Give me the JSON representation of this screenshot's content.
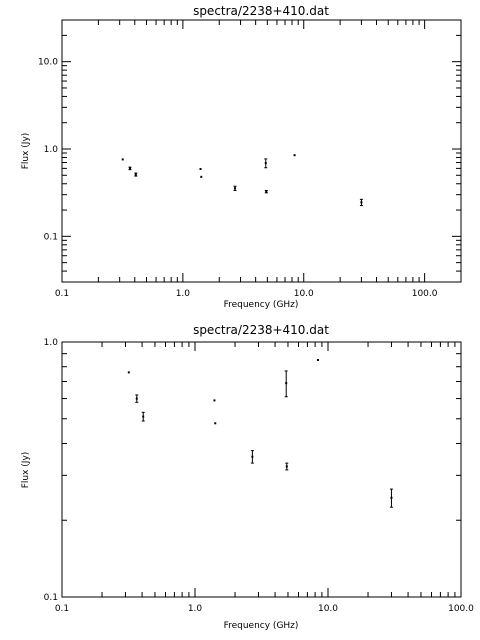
{
  "chart_data": [
    {
      "type": "scatter",
      "title": "spectra/2238+410.dat",
      "xlabel": "Frequency (GHz)",
      "ylabel": "Flux (Jy)",
      "x_scale": "log",
      "y_scale": "log",
      "xlim": [
        0.1,
        200
      ],
      "ylim": [
        0.03,
        30
      ],
      "x_ticks": [
        {
          "v": 0.1,
          "label": "0.1"
        },
        {
          "v": 1,
          "label": "1.0"
        },
        {
          "v": 10,
          "label": "10.0"
        },
        {
          "v": 100,
          "label": "100.0"
        }
      ],
      "y_ticks": [
        {
          "v": 0.1,
          "label": "0.1"
        },
        {
          "v": 1,
          "label": "1.0"
        },
        {
          "v": 10,
          "label": "10.0"
        }
      ],
      "grid": false,
      "points": [
        {
          "x": 0.318,
          "y": 0.76,
          "err": 0.0
        },
        {
          "x": 0.365,
          "y": 0.6,
          "err": 0.02
        },
        {
          "x": 0.408,
          "y": 0.51,
          "err": 0.02
        },
        {
          "x": 1.4,
          "y": 0.59,
          "err": 0.0
        },
        {
          "x": 1.42,
          "y": 0.48,
          "err": 0.0
        },
        {
          "x": 2.7,
          "y": 0.355,
          "err": 0.02
        },
        {
          "x": 4.85,
          "y": 0.69,
          "err": 0.08
        },
        {
          "x": 4.9,
          "y": 0.325,
          "err": 0.01
        },
        {
          "x": 8.4,
          "y": 0.85,
          "err": 0.0
        },
        {
          "x": 30.0,
          "y": 0.245,
          "err": 0.02
        }
      ]
    },
    {
      "type": "scatter",
      "title": "spectra/2238+410.dat",
      "xlabel": "Frequency (GHz)",
      "ylabel": "Flux (Jy)",
      "x_scale": "log",
      "y_scale": "log",
      "xlim": [
        0.1,
        100
      ],
      "ylim": [
        0.1,
        1.0
      ],
      "x_ticks": [
        {
          "v": 0.1,
          "label": "0.1"
        },
        {
          "v": 1,
          "label": "1.0"
        },
        {
          "v": 10,
          "label": "10.0"
        },
        {
          "v": 100,
          "label": "100.0"
        }
      ],
      "y_ticks": [
        {
          "v": 0.1,
          "label": "0.1"
        },
        {
          "v": 1,
          "label": "1.0"
        }
      ],
      "grid": false,
      "points": [
        {
          "x": 0.318,
          "y": 0.76,
          "err": 0.0
        },
        {
          "x": 0.365,
          "y": 0.6,
          "err": 0.02
        },
        {
          "x": 0.408,
          "y": 0.51,
          "err": 0.02
        },
        {
          "x": 1.4,
          "y": 0.59,
          "err": 0.0
        },
        {
          "x": 1.42,
          "y": 0.48,
          "err": 0.0
        },
        {
          "x": 2.7,
          "y": 0.355,
          "err": 0.02
        },
        {
          "x": 4.85,
          "y": 0.69,
          "err": 0.08
        },
        {
          "x": 4.9,
          "y": 0.325,
          "err": 0.01
        },
        {
          "x": 8.4,
          "y": 0.85,
          "err": 0.0
        },
        {
          "x": 30.0,
          "y": 0.245,
          "err": 0.02
        }
      ]
    }
  ]
}
